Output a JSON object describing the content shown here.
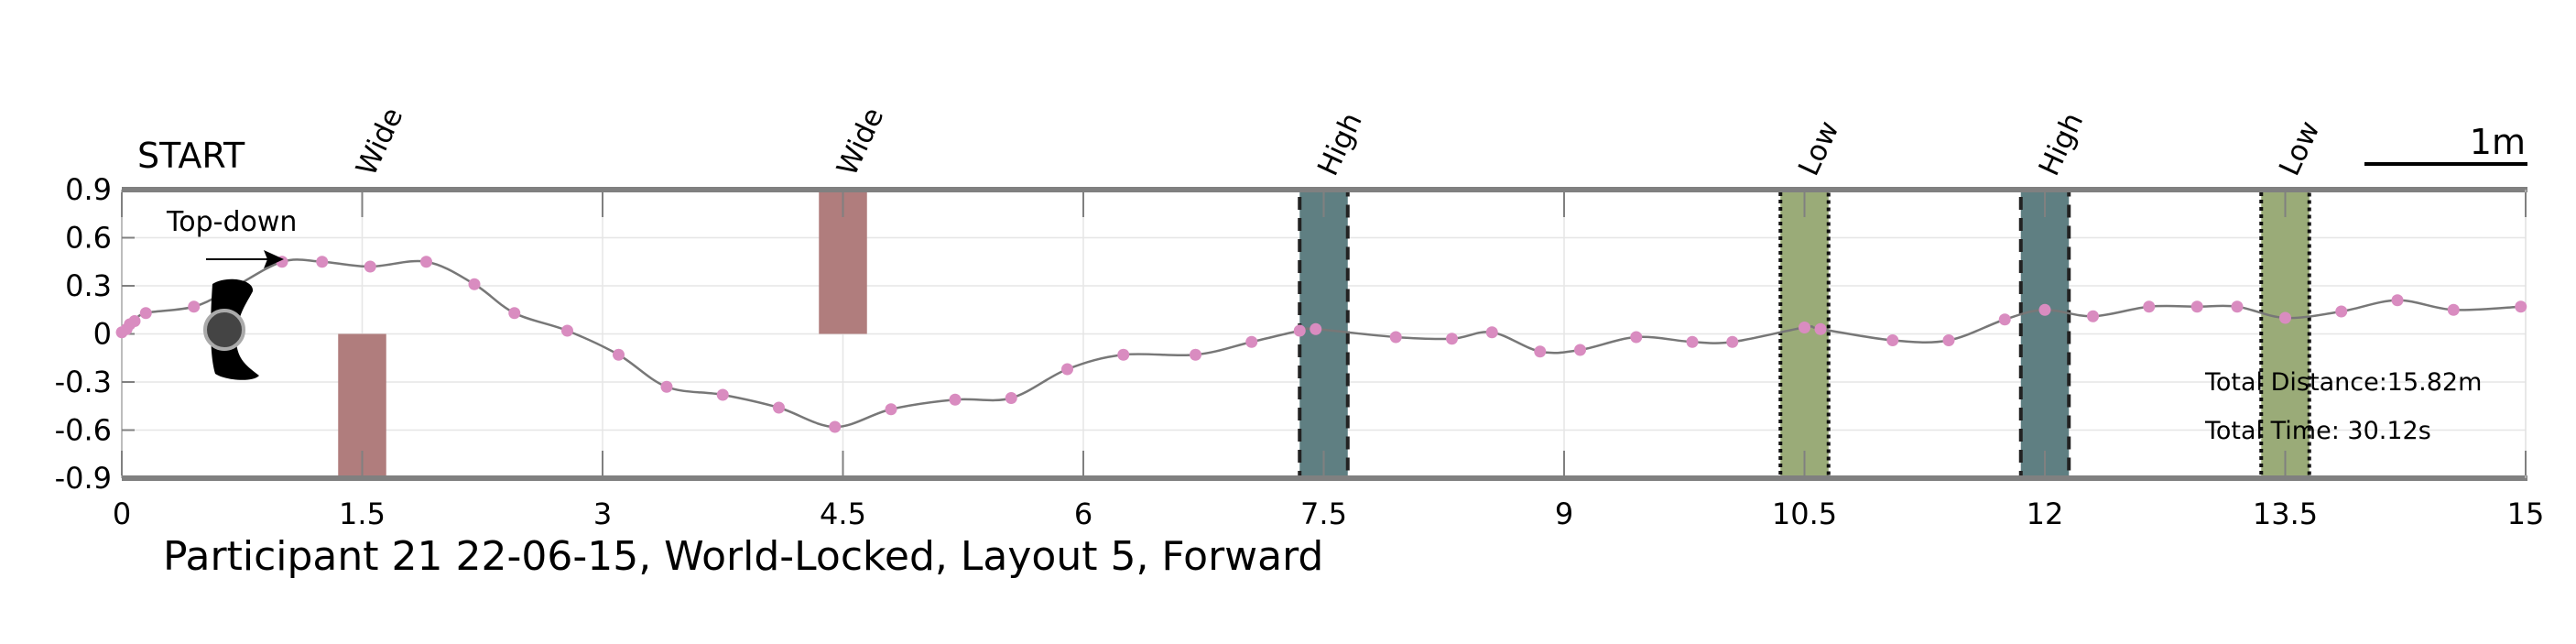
{
  "chart_data": {
    "type": "line",
    "title": "Participant 21 22-06-15, World-Locked, Layout 5, Forward",
    "xlabel": "",
    "ylabel": "",
    "xlim": [
      0,
      15
    ],
    "ylim": [
      -0.9,
      0.9
    ],
    "xticks": [
      "0",
      "1.5",
      "3",
      "4.5",
      "6",
      "7.5",
      "9",
      "10.5",
      "12",
      "13.5",
      "15"
    ],
    "yticks": [
      "0.9",
      "0.6",
      "0.3",
      "0",
      "-0.3",
      "-0.6",
      "-0.9"
    ],
    "grid": true,
    "start_label": "START",
    "scale_label": "1m",
    "annotation_topdown": "Top-down",
    "total_distance": "Total Distance:15.82m",
    "total_time": "Total Time: 30.12s",
    "colors": {
      "path": "#777777",
      "points": "#d98cc0",
      "wide": "#b07d7d",
      "high": "#5f7f82",
      "low": "#9aab78",
      "frame": "#808080"
    },
    "obstacles": [
      {
        "type": "wide",
        "label": "Wide",
        "x0": 1.35,
        "x1": 1.65,
        "y0": -0.9,
        "y1": 0
      },
      {
        "type": "wide",
        "label": "Wide",
        "x0": 4.35,
        "x1": 4.65,
        "y0": 0,
        "y1": 0.9
      },
      {
        "type": "high",
        "label": "High",
        "x0": 7.35,
        "x1": 7.65,
        "y0": -0.9,
        "y1": 0.9
      },
      {
        "type": "low",
        "label": "Low",
        "x0": 10.35,
        "x1": 10.65,
        "y0": -0.9,
        "y1": 0.9
      },
      {
        "type": "high",
        "label": "High",
        "x0": 11.85,
        "x1": 12.15,
        "y0": -0.9,
        "y1": 0.9
      },
      {
        "type": "low",
        "label": "Low",
        "x0": 13.35,
        "x1": 13.65,
        "y0": -0.9,
        "y1": 0.9
      }
    ],
    "series": [
      {
        "x": [
          0.0,
          0.03,
          0.05,
          0.08,
          0.15,
          0.45,
          0.68,
          1.0,
          1.25,
          1.55,
          1.9,
          2.2,
          2.45,
          2.78,
          3.1,
          3.4,
          3.75,
          4.1,
          4.45,
          4.8,
          5.2,
          5.55,
          5.9,
          6.25,
          6.7,
          7.05,
          7.35,
          7.45,
          7.95,
          8.3,
          8.55,
          8.85,
          9.1,
          9.45,
          9.8,
          10.05,
          10.5,
          10.6,
          11.05,
          11.4,
          11.75,
          12.0,
          12.3,
          12.65,
          12.95,
          13.2,
          13.5,
          13.85,
          14.2,
          14.55,
          14.97
        ],
        "y": [
          0.01,
          0.03,
          0.06,
          0.08,
          0.13,
          0.17,
          0.28,
          0.45,
          0.45,
          0.42,
          0.45,
          0.31,
          0.13,
          0.02,
          -0.13,
          -0.33,
          -0.38,
          -0.46,
          -0.58,
          -0.47,
          -0.41,
          -0.4,
          -0.22,
          -0.13,
          -0.13,
          -0.05,
          0.02,
          0.03,
          -0.02,
          -0.03,
          0.01,
          -0.11,
          -0.1,
          -0.02,
          -0.05,
          -0.05,
          0.04,
          0.03,
          -0.04,
          -0.04,
          0.09,
          0.15,
          0.11,
          0.17,
          0.17,
          0.17,
          0.1,
          0.14,
          0.21,
          0.15,
          0.17
        ]
      }
    ]
  }
}
